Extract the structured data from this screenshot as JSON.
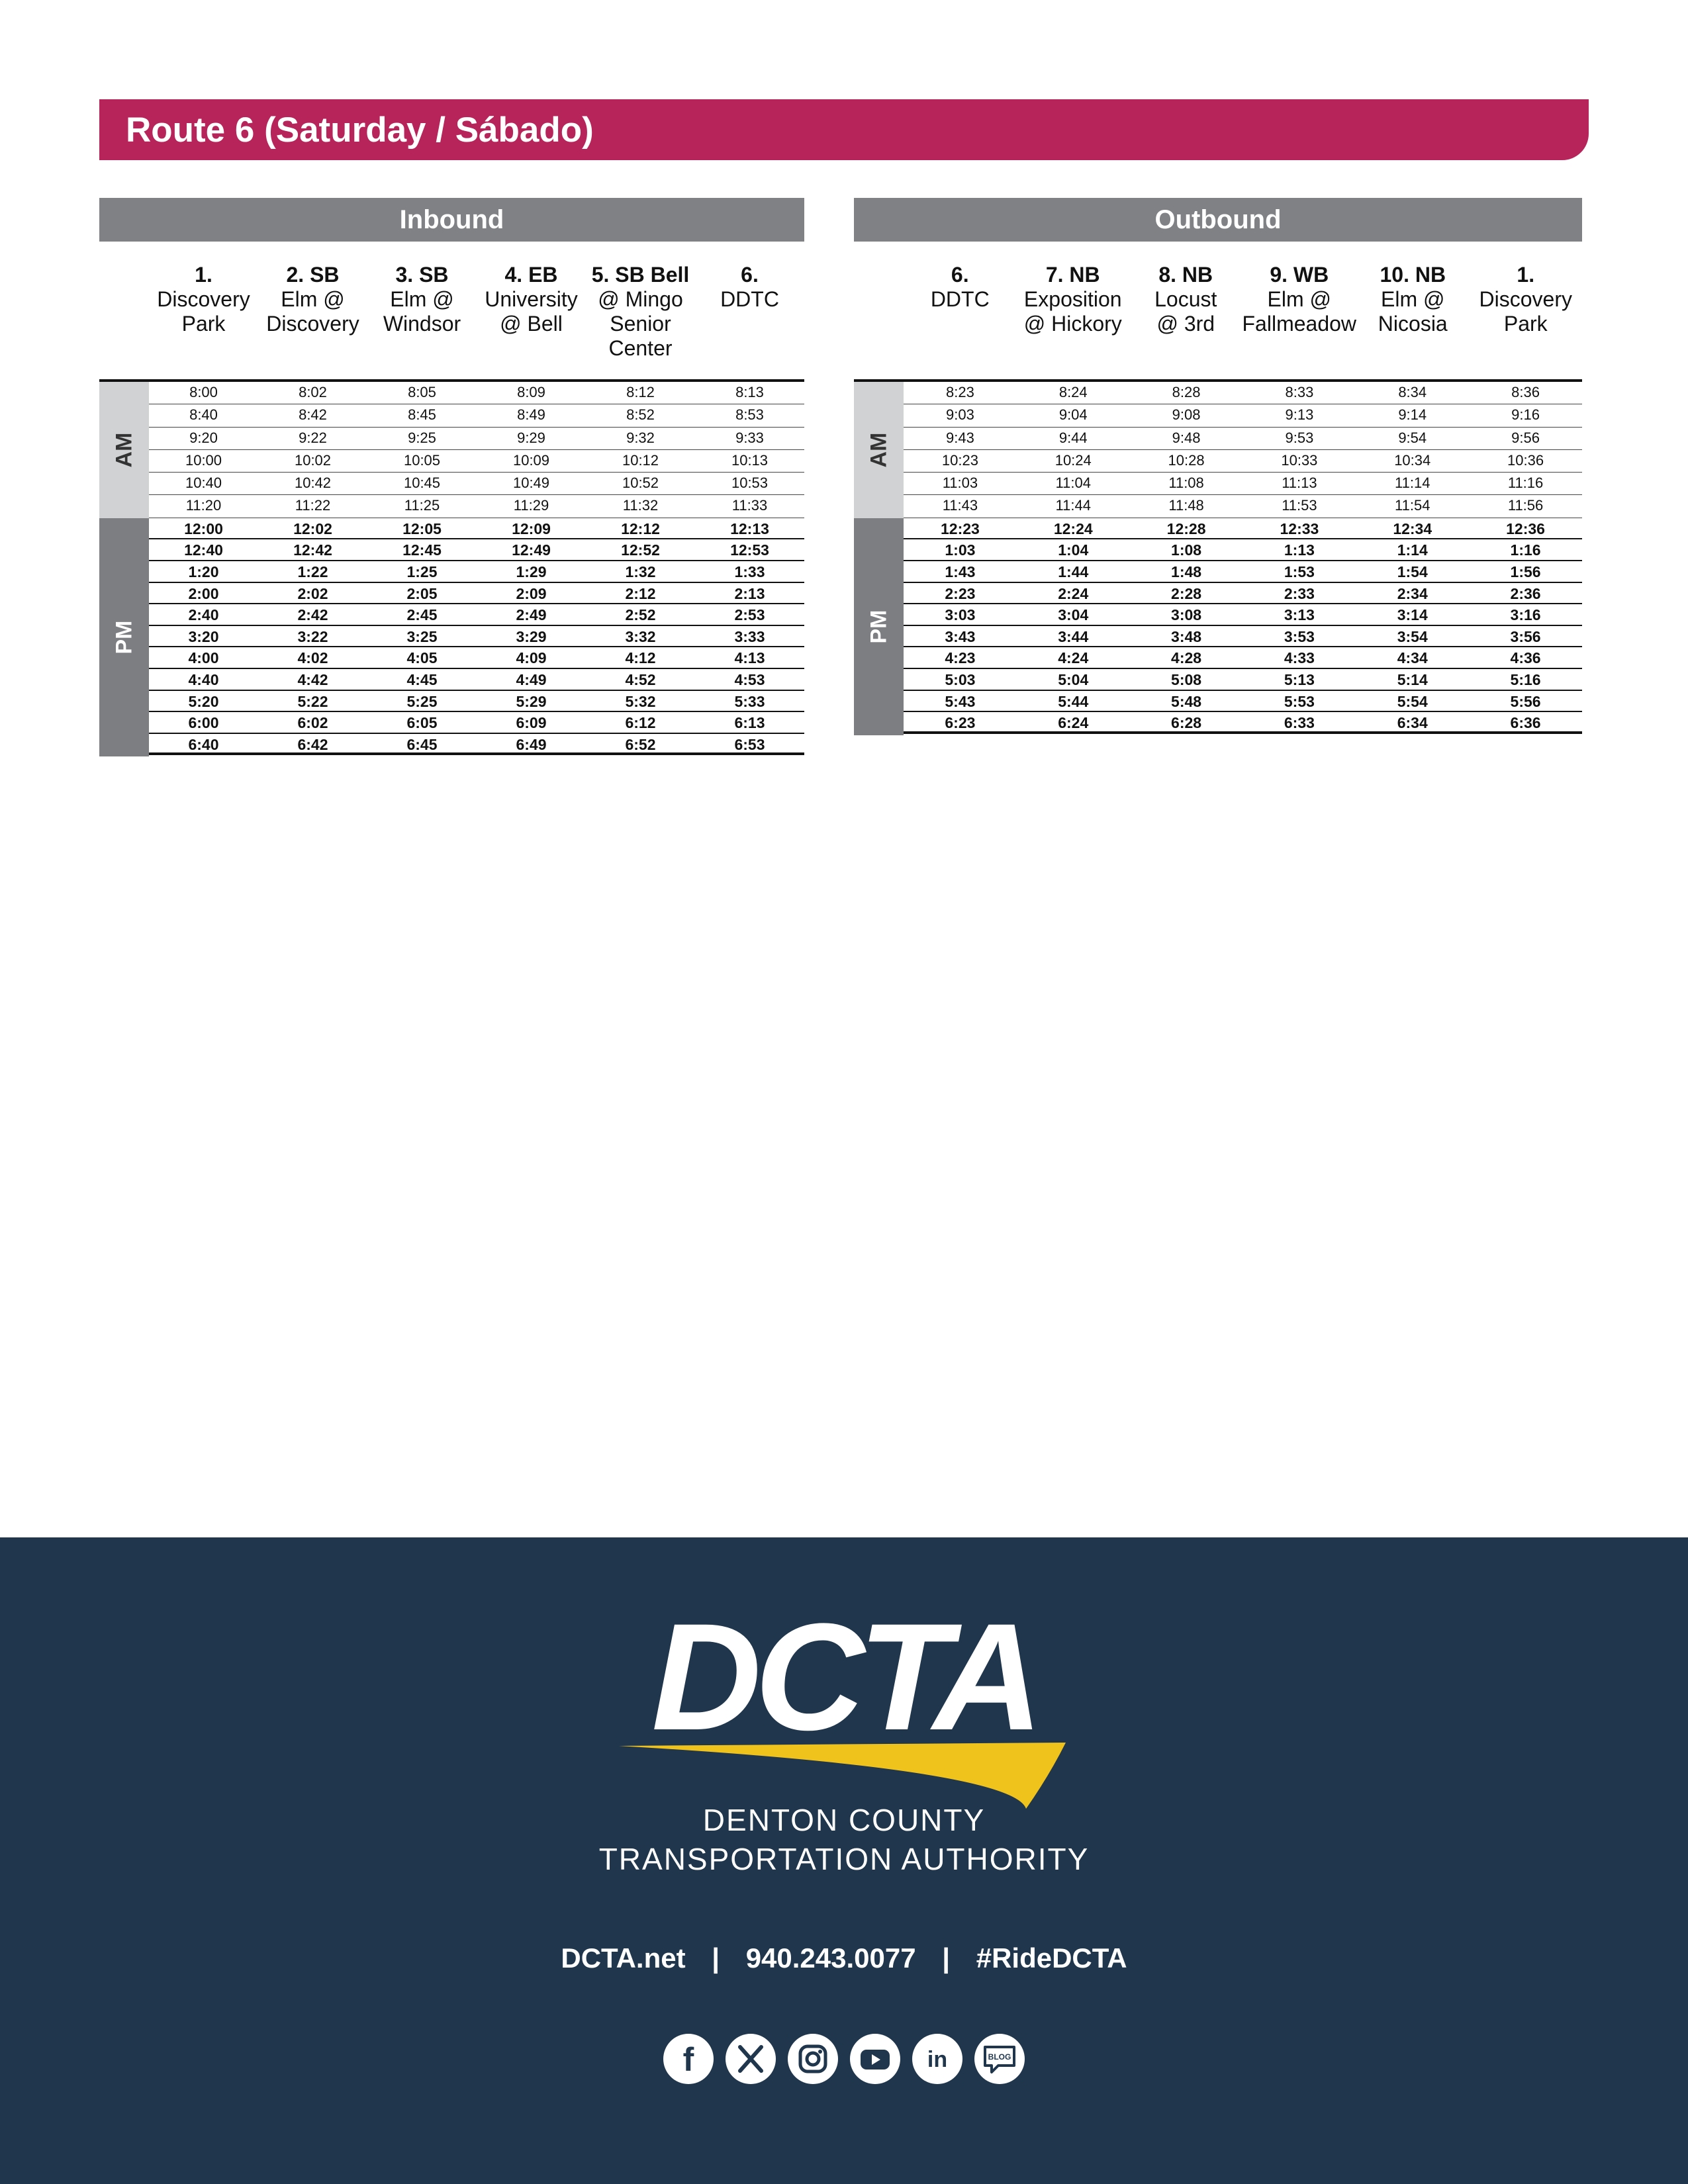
{
  "banner": {
    "title": "Route 6 (Saturday / Sábado)"
  },
  "inbound": {
    "title": "Inbound",
    "am_label": "AM",
    "pm_label": "PM",
    "stops": [
      {
        "num": "1.",
        "l1": "Discovery",
        "l2": "Park",
        "l3": "",
        "l4": ""
      },
      {
        "num": "2. SB",
        "l1": "Elm @",
        "l2": "Discovery",
        "l3": "",
        "l4": ""
      },
      {
        "num": "3. SB",
        "l1": "Elm @",
        "l2": "Windsor",
        "l3": "",
        "l4": ""
      },
      {
        "num": "4. EB",
        "l1": "University",
        "l2": "@ Bell",
        "l3": "",
        "l4": ""
      },
      {
        "num": "5. SB Bell",
        "l1": "@ Mingo",
        "l2": "Senior",
        "l3": "Center",
        "l4": ""
      },
      {
        "num": "6.",
        "l1": "DDTC",
        "l2": "",
        "l3": "",
        "l4": ""
      }
    ],
    "am_rows": [
      [
        "8:00",
        "8:02",
        "8:05",
        "8:09",
        "8:12",
        "8:13"
      ],
      [
        "8:40",
        "8:42",
        "8:45",
        "8:49",
        "8:52",
        "8:53"
      ],
      [
        "9:20",
        "9:22",
        "9:25",
        "9:29",
        "9:32",
        "9:33"
      ],
      [
        "10:00",
        "10:02",
        "10:05",
        "10:09",
        "10:12",
        "10:13"
      ],
      [
        "10:40",
        "10:42",
        "10:45",
        "10:49",
        "10:52",
        "10:53"
      ],
      [
        "11:20",
        "11:22",
        "11:25",
        "11:29",
        "11:32",
        "11:33"
      ]
    ],
    "pm_rows": [
      [
        "12:00",
        "12:02",
        "12:05",
        "12:09",
        "12:12",
        "12:13"
      ],
      [
        "12:40",
        "12:42",
        "12:45",
        "12:49",
        "12:52",
        "12:53"
      ],
      [
        "1:20",
        "1:22",
        "1:25",
        "1:29",
        "1:32",
        "1:33"
      ],
      [
        "2:00",
        "2:02",
        "2:05",
        "2:09",
        "2:12",
        "2:13"
      ],
      [
        "2:40",
        "2:42",
        "2:45",
        "2:49",
        "2:52",
        "2:53"
      ],
      [
        "3:20",
        "3:22",
        "3:25",
        "3:29",
        "3:32",
        "3:33"
      ],
      [
        "4:00",
        "4:02",
        "4:05",
        "4:09",
        "4:12",
        "4:13"
      ],
      [
        "4:40",
        "4:42",
        "4:45",
        "4:49",
        "4:52",
        "4:53"
      ],
      [
        "5:20",
        "5:22",
        "5:25",
        "5:29",
        "5:32",
        "5:33"
      ],
      [
        "6:00",
        "6:02",
        "6:05",
        "6:09",
        "6:12",
        "6:13"
      ],
      [
        "6:40",
        "6:42",
        "6:45",
        "6:49",
        "6:52",
        "6:53"
      ]
    ]
  },
  "outbound": {
    "title": "Outbound",
    "am_label": "AM",
    "pm_label": "PM",
    "stops": [
      {
        "num": "6.",
        "l1": "DDTC",
        "l2": "",
        "l3": "",
        "l4": ""
      },
      {
        "num": "7. NB",
        "l1": "Exposition",
        "l2": "@ Hickory",
        "l3": "",
        "l4": ""
      },
      {
        "num": "8. NB",
        "l1": "Locust",
        "l2": "@ 3rd",
        "l3": "",
        "l4": ""
      },
      {
        "num": "9. WB",
        "l1": "Elm @",
        "l2": "Fallmeadow",
        "l3": "",
        "l4": ""
      },
      {
        "num": "10. NB",
        "l1": "Elm @",
        "l2": "Nicosia",
        "l3": "",
        "l4": ""
      },
      {
        "num": "1.",
        "l1": "Discovery",
        "l2": "Park",
        "l3": "",
        "l4": ""
      }
    ],
    "am_rows": [
      [
        "8:23",
        "8:24",
        "8:28",
        "8:33",
        "8:34",
        "8:36"
      ],
      [
        "9:03",
        "9:04",
        "9:08",
        "9:13",
        "9:14",
        "9:16"
      ],
      [
        "9:43",
        "9:44",
        "9:48",
        "9:53",
        "9:54",
        "9:56"
      ],
      [
        "10:23",
        "10:24",
        "10:28",
        "10:33",
        "10:34",
        "10:36"
      ],
      [
        "11:03",
        "11:04",
        "11:08",
        "11:13",
        "11:14",
        "11:16"
      ],
      [
        "11:43",
        "11:44",
        "11:48",
        "11:53",
        "11:54",
        "11:56"
      ]
    ],
    "pm_rows": [
      [
        "12:23",
        "12:24",
        "12:28",
        "12:33",
        "12:34",
        "12:36"
      ],
      [
        "1:03",
        "1:04",
        "1:08",
        "1:13",
        "1:14",
        "1:16"
      ],
      [
        "1:43",
        "1:44",
        "1:48",
        "1:53",
        "1:54",
        "1:56"
      ],
      [
        "2:23",
        "2:24",
        "2:28",
        "2:33",
        "2:34",
        "2:36"
      ],
      [
        "3:03",
        "3:04",
        "3:08",
        "3:13",
        "3:14",
        "3:16"
      ],
      [
        "3:43",
        "3:44",
        "3:48",
        "3:53",
        "3:54",
        "3:56"
      ],
      [
        "4:23",
        "4:24",
        "4:28",
        "4:33",
        "4:34",
        "4:36"
      ],
      [
        "5:03",
        "5:04",
        "5:08",
        "5:13",
        "5:14",
        "5:16"
      ],
      [
        "5:43",
        "5:44",
        "5:48",
        "5:53",
        "5:54",
        "5:56"
      ],
      [
        "6:23",
        "6:24",
        "6:28",
        "6:33",
        "6:34",
        "6:36"
      ]
    ]
  },
  "footer": {
    "logo_text": "DCTA",
    "org_line1": "DENTON COUNTY",
    "org_line2": "TRANSPORTATION AUTHORITY",
    "website": "DCTA.net",
    "separator": "|",
    "phone": "940.243.0077",
    "hashtag": "#RideDCTA",
    "blog_label": "BLOG",
    "colors": {
      "navy": "#1f364c",
      "accent_yellow": "#f0c21c",
      "banner": "#b7245a"
    },
    "social_icons": [
      "facebook-icon",
      "x-icon",
      "instagram-icon",
      "youtube-icon",
      "linkedin-icon",
      "blog-icon"
    ]
  }
}
